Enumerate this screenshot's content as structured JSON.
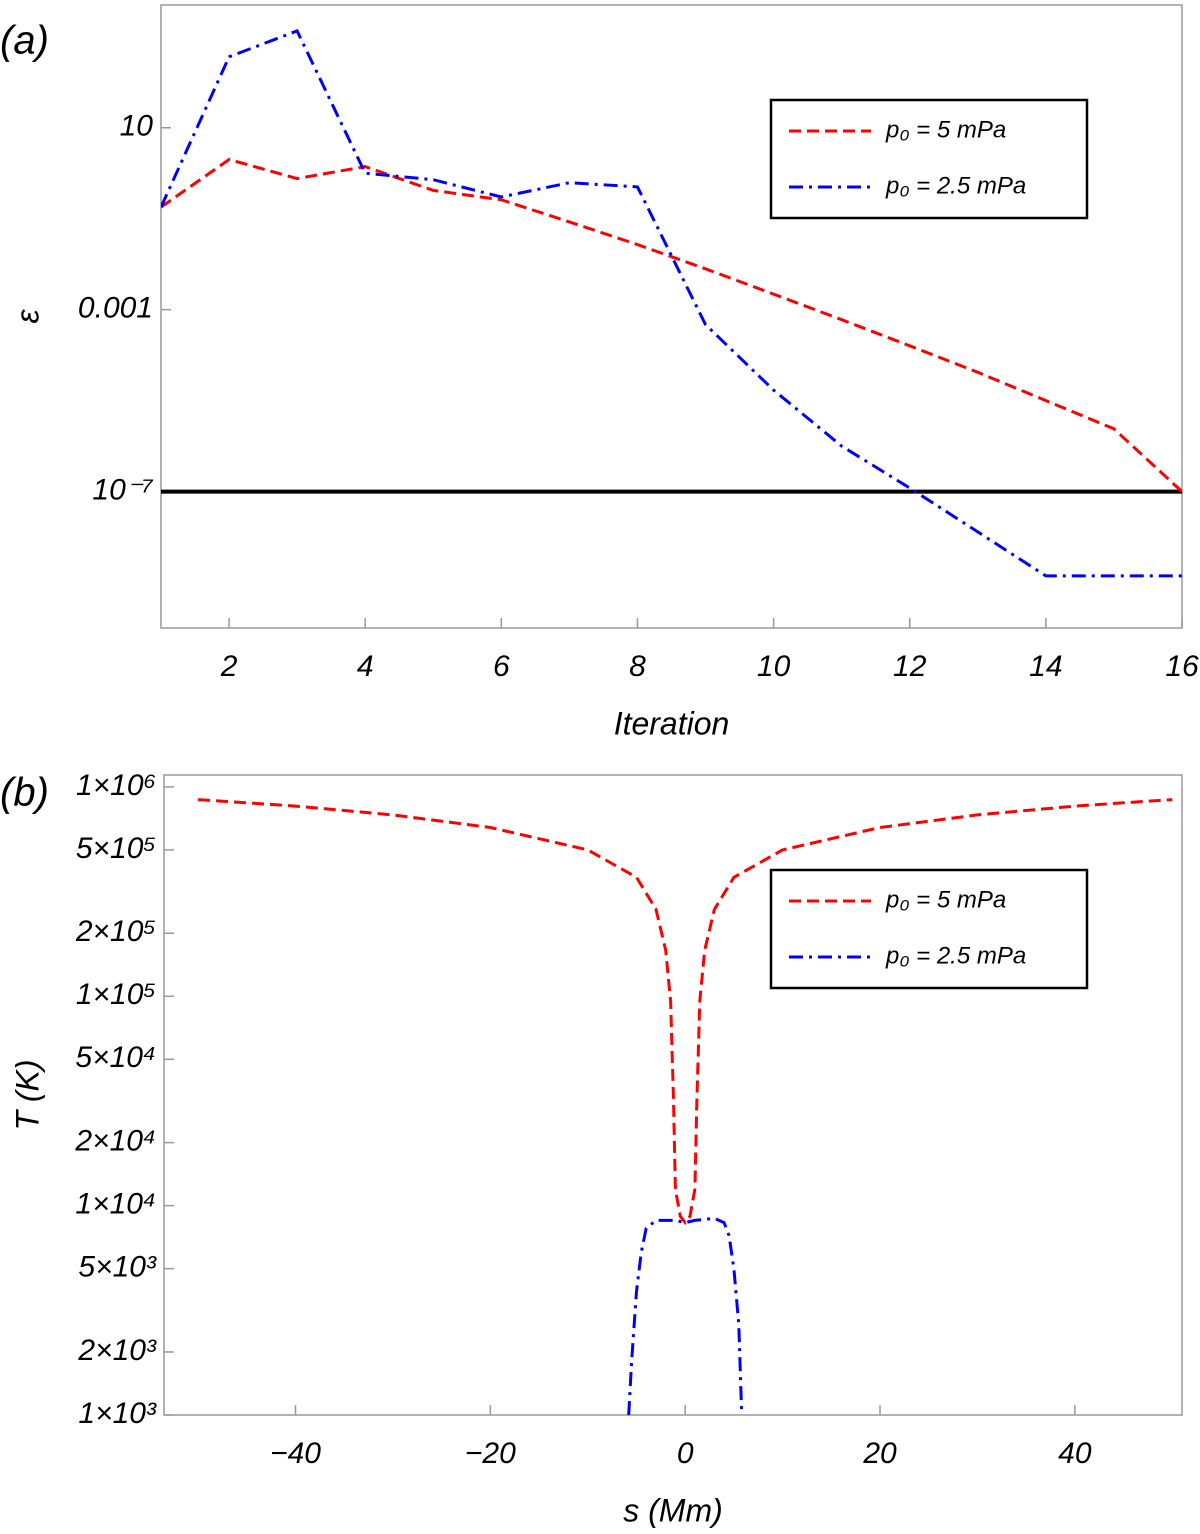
{
  "chart_data": [
    {
      "type": "line",
      "panel_label": "(a)",
      "xlabel": "Iteration",
      "ylabel": "ε",
      "log_y": true,
      "xlim": [
        1,
        16
      ],
      "ylim": [
        1e-10,
        5000
      ],
      "xticks": [
        2,
        4,
        6,
        8,
        10,
        12,
        14,
        16
      ],
      "yticks": [
        10,
        0.001,
        {
          "value": 1e-07,
          "label": "10⁻⁷"
        }
      ],
      "hlines": [
        {
          "value": 1e-07,
          "color": "#000000"
        }
      ],
      "legend": "upper right",
      "series": [
        {
          "name": "p₀ = 5 mPa",
          "color": "#ff0000",
          "dash": "dashed",
          "x": [
            1,
            2,
            3,
            4,
            5,
            6,
            7,
            8,
            9,
            10,
            11,
            12,
            13,
            14,
            15,
            16
          ],
          "values": [
            0.18,
            2.0,
            0.76,
            1.4,
            0.42,
            0.26,
            0.085,
            0.027,
            0.0079,
            0.0022,
            0.0006,
            0.00016,
            4.2e-05,
            1e-05,
            2.4e-06,
            1e-07
          ]
        },
        {
          "name": "p₀ = 2.5 mPa",
          "color": "#0000ff",
          "dash": "dashdot",
          "x": [
            1,
            2,
            3,
            4,
            5,
            6,
            7,
            8,
            9,
            10,
            11,
            12,
            13,
            14,
            15,
            16
          ],
          "values": [
            0.18,
            363,
            1350,
            1.0,
            0.72,
            0.3,
            0.62,
            0.5,
            0.00047,
            1.7e-05,
            1e-06,
            1.2e-07,
            1.3e-08,
            1.4e-09,
            1.4e-09,
            1.4e-09
          ]
        }
      ]
    },
    {
      "type": "line",
      "panel_label": "(b)",
      "xlabel": "s (Mm)",
      "ylabel": "T (K)",
      "log_y": true,
      "xlim": [
        -53.5,
        51
      ],
      "ylim": [
        1000,
        1140000
      ],
      "xticks": [
        {
          "value": -40,
          "label": "−40"
        },
        {
          "value": -20,
          "label": "−20"
        },
        0,
        20,
        40
      ],
      "yticks": [
        {
          "value": 1000000,
          "label": "1×10⁶"
        },
        {
          "value": 500000,
          "label": "5×10⁵"
        },
        {
          "value": 200000,
          "label": "2×10⁵"
        },
        {
          "value": 100000,
          "label": "1×10⁵"
        },
        {
          "value": 50000,
          "label": "5×10⁴"
        },
        {
          "value": 20000,
          "label": "2×10⁴"
        },
        {
          "value": 10000,
          "label": "1×10⁴"
        },
        {
          "value": 5000,
          "label": "5×10³"
        },
        {
          "value": 2000,
          "label": "2×10³"
        },
        {
          "value": 1000,
          "label": "1×10³"
        }
      ],
      "legend": "upper right",
      "series": [
        {
          "name": "p₀ = 5 mPa",
          "color": "#ff0000",
          "dash": "dashed",
          "x": [
            -50,
            -45,
            -40,
            -30,
            -20,
            -10,
            -5,
            -3,
            -2,
            -1.5,
            -1.2,
            -1,
            -0.5,
            0,
            0.5,
            1,
            1.2,
            1.5,
            2,
            3,
            5,
            10,
            20,
            30,
            40,
            45,
            50
          ],
          "values": [
            870000,
            840000,
            810000,
            735000,
            640000,
            500000,
            370000,
            260000,
            166000,
            95000,
            32000,
            12000,
            8900,
            8300,
            8900,
            12000,
            32000,
            95000,
            166000,
            260000,
            370000,
            500000,
            640000,
            735000,
            810000,
            840000,
            870000
          ]
        },
        {
          "name": "p₀ = 2.5 mPa",
          "color": "#0000ff",
          "dash": "dashdot",
          "x": [
            -5.8,
            -5.5,
            -5,
            -4.5,
            -4,
            -3,
            -1,
            0,
            1,
            3,
            4,
            4.5,
            5,
            5.5,
            5.8
          ],
          "values": [
            1000,
            1800,
            3900,
            6000,
            7800,
            8500,
            8500,
            8300,
            8500,
            8700,
            8300,
            7200,
            5000,
            2700,
            1000
          ]
        }
      ]
    }
  ]
}
